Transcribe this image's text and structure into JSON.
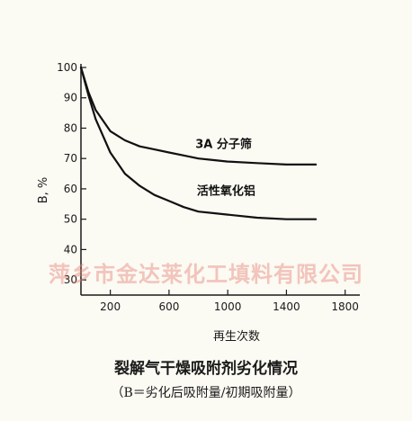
{
  "chart_data": {
    "type": "line",
    "title": "",
    "xlabel": "再生次数",
    "ylabel": "B, %",
    "xlim": [
      0,
      1900
    ],
    "ylim": [
      25,
      100
    ],
    "x_ticks": [
      200,
      600,
      1000,
      1400,
      1800
    ],
    "y_ticks": [
      30,
      40,
      50,
      60,
      70,
      80,
      90,
      100
    ],
    "y_tick_labels": [
      "30",
      "40",
      "50",
      "60",
      "70",
      "80",
      "90",
      "100"
    ],
    "grid": false,
    "series": [
      {
        "name": "3A 分子筛",
        "x": [
          0,
          50,
          100,
          200,
          300,
          400,
          500,
          600,
          700,
          800,
          900,
          1000,
          1200,
          1400,
          1600
        ],
        "y": [
          100,
          92,
          86,
          79,
          76,
          74,
          73,
          72,
          71,
          70,
          69.5,
          69,
          68.5,
          68,
          68
        ]
      },
      {
        "name": "活性氧化铝",
        "x": [
          0,
          50,
          100,
          200,
          300,
          400,
          500,
          600,
          700,
          800,
          900,
          1000,
          1200,
          1400,
          1600
        ],
        "y": [
          100,
          91,
          83,
          72,
          65,
          61,
          58,
          56,
          54,
          52.5,
          52,
          51.5,
          50.5,
          50,
          50
        ]
      }
    ]
  },
  "watermark": "萍乡市金达莱化工填料有限公司",
  "caption": {
    "main": "裂解气干燥吸附剂劣化情况",
    "sub": "（B＝劣化后吸附量/初期吸附量）"
  }
}
